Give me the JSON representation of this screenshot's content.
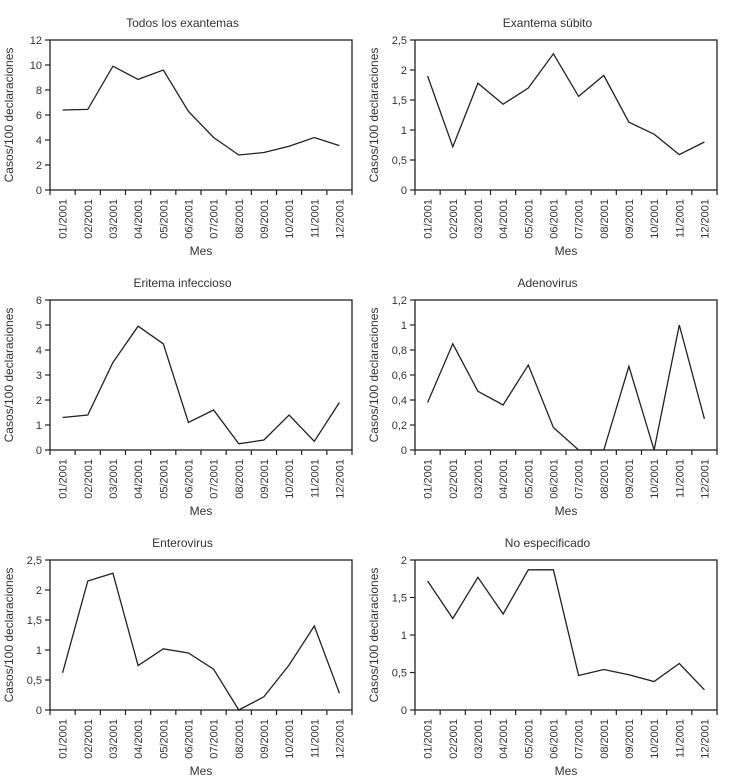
{
  "figure": {
    "description": "Six monthly incidence line charts for exanthematous diseases, year 2001",
    "colors": {
      "line": "#222222",
      "text": "#333333",
      "background": "#ffffff"
    }
  },
  "chart_data": [
    {
      "type": "line",
      "title": "Todos los exantemas",
      "xlabel": "Mes",
      "ylabel": "Casos/100 declaraciones",
      "categories": [
        "01/2001",
        "02/2001",
        "03/2001",
        "04/2001",
        "05/2001",
        "06/2001",
        "07/2001",
        "08/2001",
        "09/2001",
        "10/2001",
        "11/2001",
        "12/2001"
      ],
      "values": [
        6.4,
        6.45,
        9.9,
        8.85,
        9.6,
        6.3,
        4.2,
        2.8,
        3.0,
        3.5,
        4.2,
        3.55
      ],
      "ylim": [
        0,
        12
      ],
      "ytick_values": [
        0,
        2,
        4,
        6,
        8,
        10,
        12
      ],
      "ytick_labels": [
        "0",
        "2",
        "4",
        "6",
        "8",
        "10",
        "12"
      ],
      "grid": false,
      "legend": "none",
      "line_color": "#222222"
    },
    {
      "type": "line",
      "title": "Exantema súbito",
      "xlabel": "Mes",
      "ylabel": "Casos/100 declaraciones",
      "categories": [
        "01/2001",
        "02/2001",
        "03/2001",
        "04/2001",
        "05/2001",
        "06/2001",
        "07/2001",
        "08/2001",
        "09/2001",
        "10/2001",
        "11/2001",
        "12/2001"
      ],
      "values": [
        1.9,
        0.72,
        1.78,
        1.43,
        1.7,
        2.27,
        1.56,
        1.91,
        1.13,
        0.93,
        0.59,
        0.8
      ],
      "ylim": [
        0,
        2.5
      ],
      "ytick_values": [
        0,
        0.5,
        1,
        1.5,
        2,
        2.5
      ],
      "ytick_labels": [
        "0",
        "0,5",
        "1",
        "1,5",
        "2",
        "2,5"
      ],
      "grid": false,
      "legend": "none",
      "line_color": "#222222"
    },
    {
      "type": "line",
      "title": "Eritema infeccioso",
      "xlabel": "Mes",
      "ylabel": "Casos/100 declaraciones",
      "categories": [
        "01/2001",
        "02/2001",
        "03/2001",
        "04/2001",
        "05/2001",
        "06/2001",
        "07/2001",
        "08/2001",
        "09/2001",
        "10/2001",
        "11/2001",
        "12/2001"
      ],
      "values": [
        1.3,
        1.4,
        3.5,
        4.95,
        4.25,
        1.1,
        1.6,
        0.25,
        0.4,
        1.4,
        0.35,
        1.9
      ],
      "ylim": [
        0,
        6
      ],
      "ytick_values": [
        0,
        1,
        2,
        3,
        4,
        5,
        6
      ],
      "ytick_labels": [
        "0",
        "1",
        "2",
        "3",
        "4",
        "5",
        "6"
      ],
      "grid": false,
      "legend": "none",
      "line_color": "#222222"
    },
    {
      "type": "line",
      "title": "Adenovirus",
      "xlabel": "Mes",
      "ylabel": "Casos/100 declaraciones",
      "categories": [
        "01/2001",
        "02/2001",
        "03/2001",
        "04/2001",
        "05/2001",
        "06/2001",
        "07/2001",
        "08/2001",
        "09/2001",
        "10/2001",
        "11/2001",
        "12/2001"
      ],
      "values": [
        0.38,
        0.85,
        0.47,
        0.36,
        0.68,
        0.18,
        0,
        0,
        0.67,
        0,
        1.0,
        0.25
      ],
      "ylim": [
        0,
        1.2
      ],
      "ytick_values": [
        0,
        0.2,
        0.4,
        0.6,
        0.8,
        1,
        1.2
      ],
      "ytick_labels": [
        "0",
        "0,2",
        "0,4",
        "0,6",
        "0,8",
        "1",
        "1,2"
      ],
      "grid": false,
      "legend": "none",
      "line_color": "#222222"
    },
    {
      "type": "line",
      "title": "Enterovirus",
      "xlabel": "Mes",
      "ylabel": "Casos/100 declaraciones",
      "categories": [
        "01/2001",
        "02/2001",
        "03/2001",
        "04/2001",
        "05/2001",
        "06/2001",
        "07/2001",
        "08/2001",
        "09/2001",
        "10/2001",
        "11/2001",
        "12/2001"
      ],
      "values": [
        0.62,
        2.15,
        2.28,
        0.74,
        1.02,
        0.95,
        0.68,
        0.0,
        0.22,
        0.75,
        1.4,
        0.28
      ],
      "ylim": [
        0,
        2.5
      ],
      "ytick_values": [
        0,
        0.5,
        1,
        1.5,
        2,
        2.5
      ],
      "ytick_labels": [
        "0",
        "0,5",
        "1",
        "1,5",
        "2",
        "2,5"
      ],
      "grid": false,
      "legend": "none",
      "line_color": "#222222"
    },
    {
      "type": "line",
      "title": "No especificado",
      "xlabel": "Mes",
      "ylabel": "Casos/100 declaraciones",
      "categories": [
        "01/2001",
        "02/2001",
        "03/2001",
        "04/2001",
        "05/2001",
        "06/2001",
        "07/2001",
        "08/2001",
        "09/2001",
        "10/2001",
        "11/2001",
        "12/2001"
      ],
      "values": [
        1.72,
        1.22,
        1.77,
        1.28,
        1.87,
        1.87,
        0.46,
        0.54,
        0.47,
        0.38,
        0.62,
        0.27
      ],
      "ylim": [
        0,
        2
      ],
      "ytick_values": [
        0,
        0.5,
        1,
        1.5,
        2
      ],
      "ytick_labels": [
        "0",
        "0,5",
        "1",
        "1,5",
        "2"
      ],
      "grid": false,
      "legend": "none",
      "line_color": "#222222"
    }
  ]
}
